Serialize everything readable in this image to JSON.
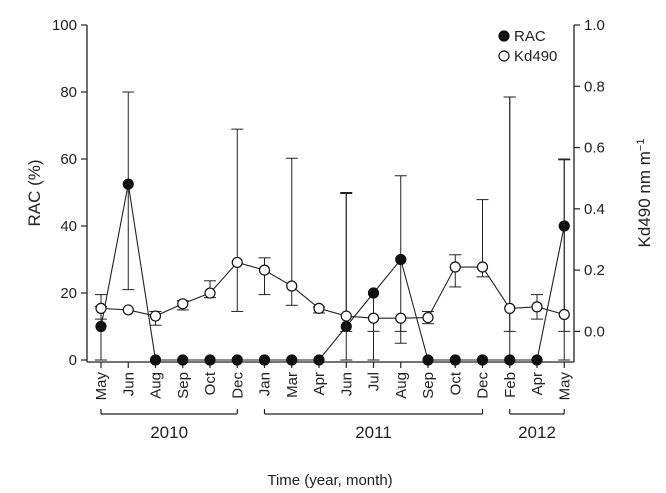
{
  "chart_data": {
    "type": "line",
    "xlabel": "Time (year, month)",
    "ylabel_left": "RAC (%)",
    "ylabel_right": "Kd490 nm m",
    "ylabel_right_sup": "−1",
    "ylim_left": [
      0,
      100
    ],
    "yticks_left": [
      "0",
      "20",
      "40",
      "60",
      "80",
      "100"
    ],
    "ylim_right": [
      -0.1,
      1.0
    ],
    "yticks_right": [
      "0.0",
      "0.2",
      "0.4",
      "0.6",
      "0.8",
      "1.0"
    ],
    "categories": [
      "May",
      "Jun",
      "Aug",
      "Sep",
      "Oct",
      "Dec",
      "Jan",
      "Mar",
      "Apr",
      "Jun",
      "Jul",
      "Aug",
      "Sep",
      "Oct",
      "Dec",
      "Feb",
      "Apr",
      "May"
    ],
    "years": [
      {
        "label": "2010",
        "from": 0,
        "to": 5
      },
      {
        "label": "2011",
        "from": 6,
        "to": 14
      },
      {
        "label": "2012",
        "from": 15,
        "to": 17
      }
    ],
    "legend": {
      "position": "top-right"
    },
    "series": [
      {
        "name": "RAC",
        "axis": "left",
        "marker": "filled-circle",
        "values": [
          10,
          52.5,
          0,
          0,
          0,
          0,
          0,
          0,
          0,
          10,
          20,
          30,
          0,
          0,
          0,
          0,
          0,
          40
        ],
        "error_upper": [
          16,
          80,
          null,
          null,
          null,
          null,
          null,
          null,
          null,
          50,
          null,
          55,
          null,
          null,
          null,
          78.5,
          null,
          60
        ],
        "error_lower": [
          0,
          21,
          null,
          null,
          null,
          null,
          null,
          null,
          null,
          0,
          0,
          5,
          null,
          null,
          null,
          0,
          null,
          0
        ]
      },
      {
        "name": "Kd490",
        "axis": "right",
        "marker": "open-circle",
        "values": [
          0.075,
          0.07,
          0.05,
          0.09,
          0.125,
          0.225,
          0.2,
          0.148,
          0.075,
          0.05,
          0.043,
          0.043,
          0.045,
          0.21,
          0.21,
          0.075,
          0.08,
          0.055
        ],
        "error_upper": [
          0.12,
          null,
          0.065,
          0.1,
          0.165,
          0.66,
          0.24,
          0.565,
          0.08,
          0.45,
          null,
          null,
          0.065,
          0.25,
          0.43,
          0.765,
          0.12,
          0.56
        ],
        "error_lower": [
          0.04,
          null,
          0.02,
          0.07,
          0.11,
          0.065,
          0.12,
          0.085,
          0.06,
          0.0,
          0.0,
          0.0,
          0.025,
          0.145,
          0.178,
          0.0,
          0.04,
          0.0
        ]
      }
    ]
  }
}
